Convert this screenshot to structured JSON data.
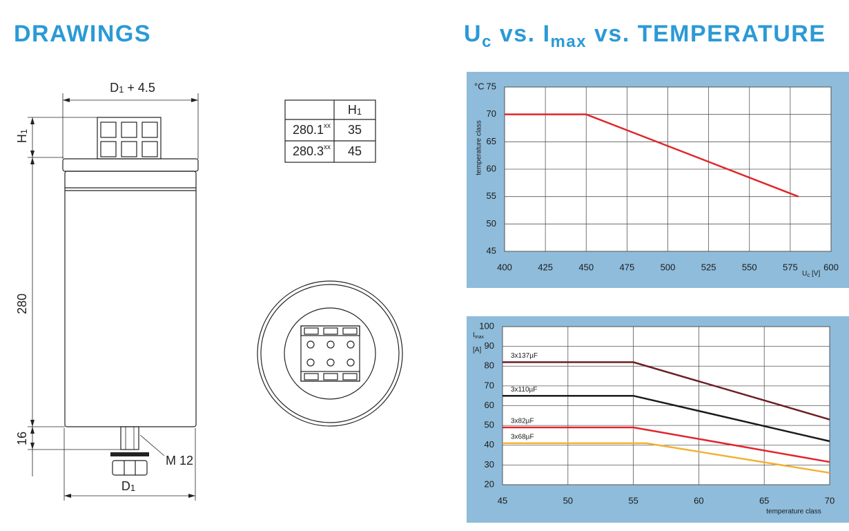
{
  "headings": {
    "left": "DRAWINGS",
    "right": [
      "U",
      "c",
      " vs. I",
      "max",
      " vs. TEMPERATURE"
    ]
  },
  "drawing": {
    "top_width": [
      "D",
      "1",
      " + 4.5"
    ],
    "terminal_height": [
      "H",
      "1"
    ],
    "body_height": "280",
    "stud_height": "16",
    "thread": "M 12",
    "diameter": [
      "D",
      "1"
    ],
    "table": {
      "header": [
        "H",
        "1"
      ],
      "rows": [
        {
          "type": [
            "280.1",
            "xx"
          ],
          "h1": "35"
        },
        {
          "type": [
            "280.3",
            "xx"
          ],
          "h1": "45"
        }
      ]
    }
  },
  "chart_data": [
    {
      "type": "line",
      "y_unit": "°C",
      "ylabel": "temperature class",
      "xlabel": [
        "U",
        "c",
        " [V]"
      ],
      "xlim": [
        400,
        600
      ],
      "xticks": [
        400,
        425,
        450,
        475,
        500,
        525,
        550,
        575,
        600
      ],
      "ylim": [
        45,
        75
      ],
      "yticks": [
        45,
        50,
        55,
        60,
        65,
        70,
        75
      ],
      "grid": true,
      "series": [
        {
          "color": "#e0262b",
          "x": [
            400,
            450,
            580
          ],
          "values": [
            70,
            70,
            55
          ]
        }
      ]
    },
    {
      "type": "line",
      "ylabel": [
        "I",
        "max",
        "[A]"
      ],
      "xlabel": "temperature class",
      "xlim": [
        45,
        70
      ],
      "xticks": [
        45,
        50,
        55,
        60,
        65,
        70
      ],
      "ylim": [
        20,
        100
      ],
      "yticks": [
        20,
        30,
        40,
        50,
        60,
        70,
        80,
        90,
        100
      ],
      "grid": true,
      "series": [
        {
          "name": "3x137µF",
          "color": "#6b1f24",
          "x": [
            45,
            55,
            70
          ],
          "values": [
            82,
            82,
            53
          ]
        },
        {
          "name": "3x110µF",
          "color": "#1a1a1a",
          "x": [
            45,
            55,
            70
          ],
          "values": [
            65,
            65,
            42
          ]
        },
        {
          "name": "3x82µF",
          "color": "#e0262b",
          "x": [
            45,
            55,
            70
          ],
          "values": [
            49,
            49,
            31.5
          ]
        },
        {
          "name": "3x68µF",
          "color": "#f2b233",
          "x": [
            45,
            56,
            70
          ],
          "values": [
            41,
            41,
            26
          ]
        }
      ]
    }
  ]
}
